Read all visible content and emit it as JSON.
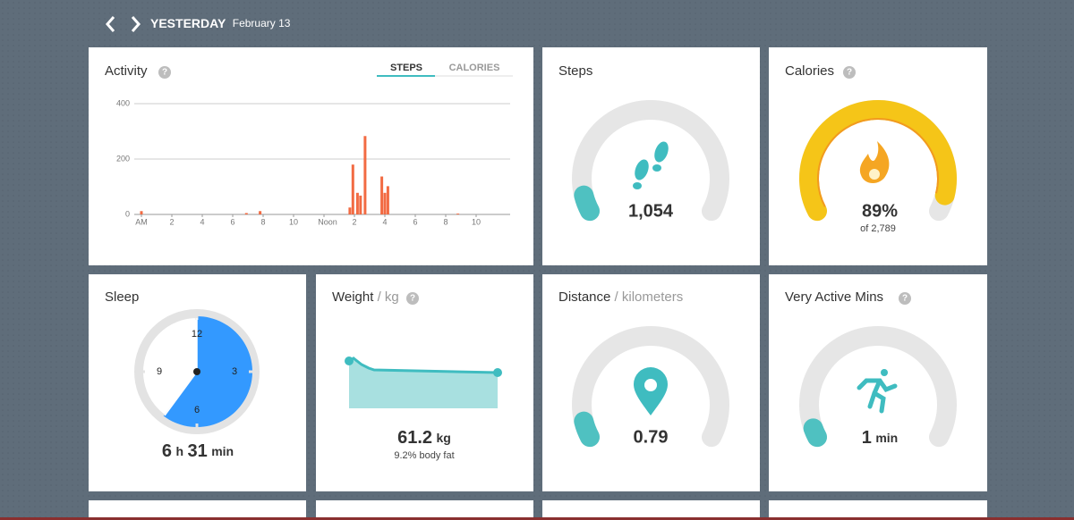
{
  "header": {
    "title": "YESTERDAY",
    "date": "February 13"
  },
  "help_icon": "?",
  "activity": {
    "title": "Activity",
    "tabs": [
      "STEPS",
      "CALORIES"
    ]
  },
  "chart_data": {
    "type": "bar",
    "color": "#f26b43",
    "x": [
      0,
      6.9,
      7.8,
      13.7,
      13.9,
      14.2,
      14.4,
      14.7,
      15.8,
      16.0,
      16.2,
      20.8
    ],
    "values": [
      12,
      5,
      12,
      25,
      180,
      78,
      68,
      283,
      137,
      78,
      102,
      3
    ],
    "xlim": [
      0,
      24
    ],
    "xticks": [
      {
        "value": 0,
        "label": "AM"
      },
      2,
      4,
      6,
      8,
      10,
      {
        "value": 12,
        "label": "Noon"
      },
      {
        "value": 14,
        "label": "2"
      },
      {
        "value": 16,
        "label": "4"
      },
      {
        "value": 18,
        "label": "6"
      },
      {
        "value": 20,
        "label": "8"
      },
      {
        "value": 22,
        "label": "10"
      }
    ],
    "ylim": [
      0,
      400
    ],
    "yticks": [
      0,
      200,
      400
    ],
    "grid": true
  },
  "steps": {
    "title": "Steps",
    "value": "1,054"
  },
  "calories": {
    "title": "Calories",
    "value": "89%",
    "goal": "of 2,789"
  },
  "sleep": {
    "title": "Sleep",
    "hours": "6",
    "hours_unit": "h",
    "minutes": "31",
    "minutes_unit": "min",
    "clock_labels": [
      "12",
      "3",
      "6",
      "9"
    ]
  },
  "weight": {
    "title": "Weight",
    "unit": "/ kg",
    "value": "61.2",
    "value_unit": "kg",
    "body_fat": "9.2% body fat"
  },
  "distance": {
    "title": "Distance",
    "unit": "/ kilometers",
    "value": "0.79"
  },
  "active": {
    "title": "Very Active Mins",
    "value": "1",
    "value_unit": "min"
  }
}
